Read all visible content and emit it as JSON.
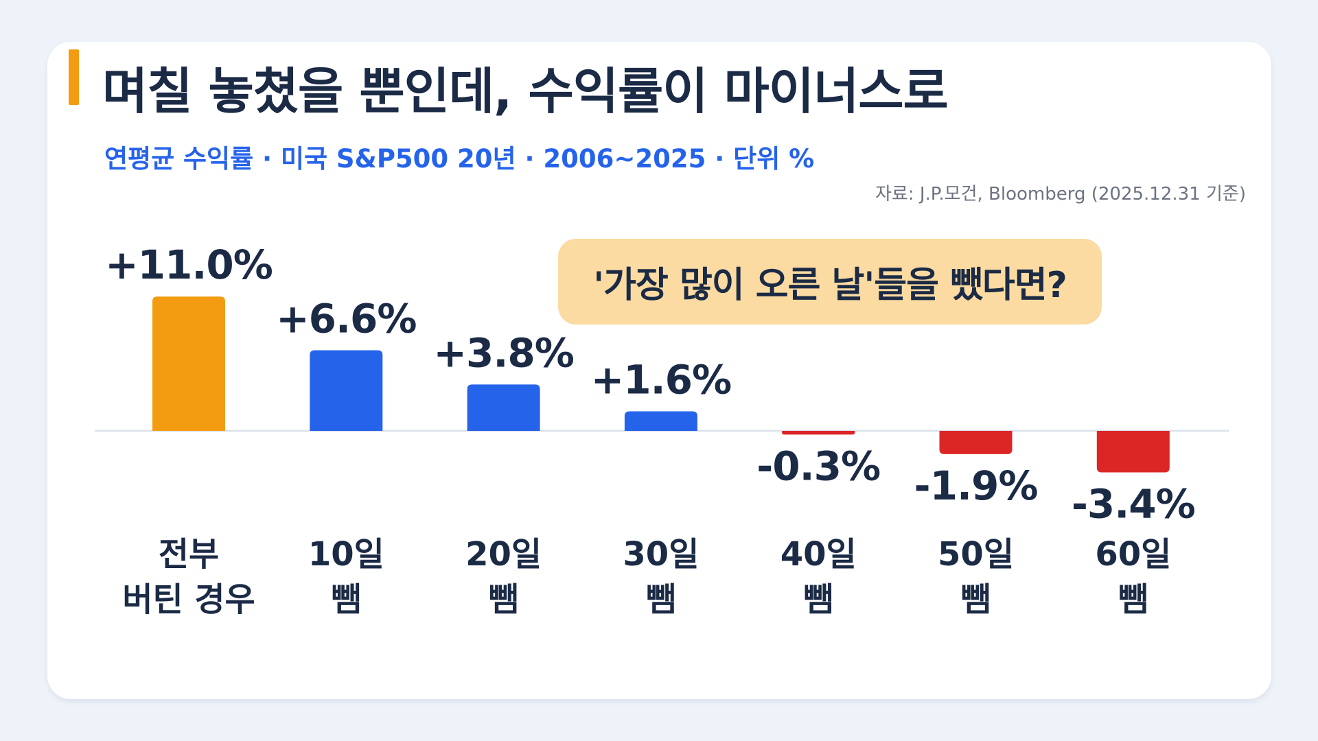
{
  "title": "며칠 놓쳤을 뿐인데, 수익률이 마이너스로",
  "subtitle": "연평균 수익률 · 미국 S&P500 20년 · 2006~2025  ·  단위 %",
  "source": "자료: J.P.모건, Bloomberg (2025.12.31 기준)",
  "callout": "'가장 많이 오른 날'들을 뺐다면?",
  "colors": {
    "highlight": "#f39c12",
    "positive": "#2563eb",
    "negative": "#dc2626",
    "text": "#1b2a45",
    "baseline": "#dfe3ec",
    "callout_bg": "#fbdba1"
  },
  "chart_data": {
    "type": "bar",
    "categories": [
      [
        "전부",
        "버틴 경우"
      ],
      [
        "10일",
        "뺌"
      ],
      [
        "20일",
        "뺌"
      ],
      [
        "30일",
        "뺌"
      ],
      [
        "40일",
        "뺌"
      ],
      [
        "50일",
        "뺌"
      ],
      [
        "60일",
        "뺌"
      ]
    ],
    "values": [
      11.0,
      6.6,
      3.8,
      1.6,
      -0.3,
      -1.9,
      -3.4
    ],
    "value_labels": [
      "+11.0%",
      "+6.6%",
      "+3.8%",
      "+1.6%",
      "-0.3%",
      "-1.9%",
      "-3.4%"
    ],
    "title": "며칠 놓쳤을 뿐인데, 수익률이 마이너스로",
    "xlabel": "",
    "ylabel": "",
    "ylim": [
      -3.4,
      11.0
    ],
    "grid": false,
    "legend": "none"
  }
}
